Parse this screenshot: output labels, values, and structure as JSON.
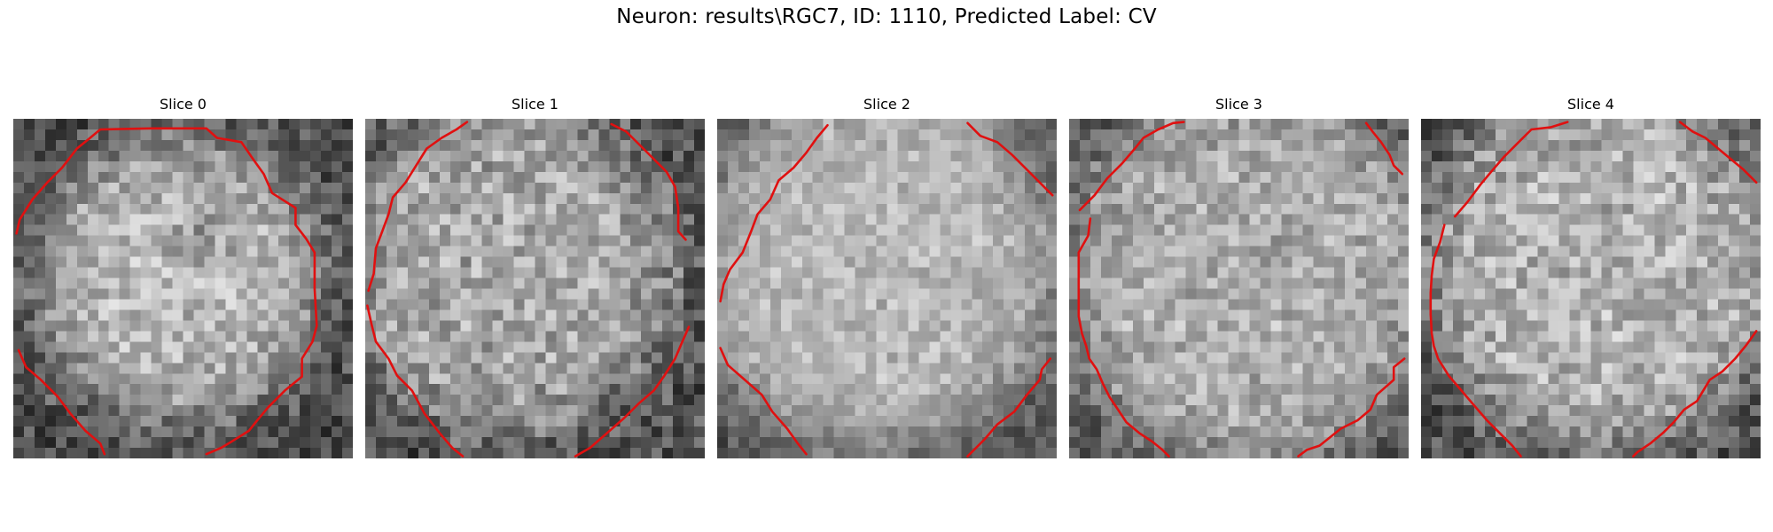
{
  "figure": {
    "title": "Neuron: results\\RGC7, ID: 1110, Predicted Label: CV",
    "contour_color": "#e01010"
  },
  "panels": [
    {
      "title": "Slice 0"
    },
    {
      "title": "Slice 1"
    },
    {
      "title": "Slice 2"
    },
    {
      "title": "Slice 3"
    },
    {
      "title": "Slice 4"
    }
  ]
}
